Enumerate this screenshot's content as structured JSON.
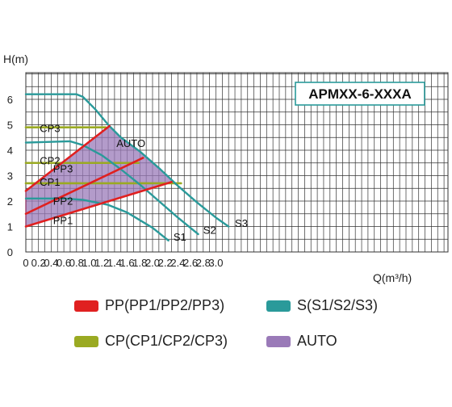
{
  "chart_data": {
    "type": "line",
    "title": "APMXX-6-XXXA",
    "ylabel": "H(m)",
    "xlabel": "Q(m³/h)",
    "xlim": [
      0,
      3.4
    ],
    "ylim": [
      0,
      7
    ],
    "x_ticks": [
      "0",
      "0.2",
      "0.4",
      "0.6",
      "0.8",
      "1.0",
      "1.2",
      "1.4",
      "1.6",
      "1.8",
      "2.0",
      "2.2",
      "2.4",
      "2.6",
      "2.8",
      "3.0"
    ],
    "y_ticks": [
      "0",
      "1",
      "2",
      "3",
      "4",
      "5",
      "6"
    ],
    "colors": {
      "PP": "#e02020",
      "S": "#2a9a9a",
      "CP": "#9aaa22",
      "AUTO": "#9a7ab8",
      "AUTO_edge": "#8b2a5a",
      "grid": "#333333"
    },
    "series": [
      {
        "name": "S1",
        "group": "S",
        "x": [
          0,
          0.6,
          0.9,
          1.3,
          1.6,
          2.0,
          2.25
        ],
        "y": [
          2.1,
          2.1,
          2.05,
          1.85,
          1.55,
          0.95,
          0.45
        ]
      },
      {
        "name": "S2",
        "group": "S",
        "x": [
          0,
          0.7,
          0.9,
          1.2,
          1.5,
          1.8,
          2.1,
          2.4,
          2.72
        ],
        "y": [
          4.3,
          4.35,
          4.2,
          3.8,
          3.25,
          2.65,
          2.0,
          1.35,
          0.7
        ]
      },
      {
        "name": "S3",
        "group": "S",
        "x": [
          0,
          0.8,
          0.9,
          1.1,
          1.3,
          1.5,
          1.8,
          2.1,
          2.4,
          2.7,
          3.0,
          3.2
        ],
        "y": [
          6.2,
          6.2,
          6.1,
          5.6,
          5.0,
          4.5,
          3.95,
          3.3,
          2.6,
          1.95,
          1.35,
          1.0
        ]
      },
      {
        "name": "PP1",
        "group": "PP",
        "x": [
          0,
          2.3
        ],
        "y": [
          1.0,
          2.75
        ]
      },
      {
        "name": "PP2",
        "group": "PP",
        "x": [
          0,
          1.85
        ],
        "y": [
          1.5,
          3.7
        ]
      },
      {
        "name": "PP3",
        "group": "PP",
        "x": [
          0,
          1.32
        ],
        "y": [
          2.4,
          4.95
        ]
      },
      {
        "name": "CP1",
        "group": "CP",
        "x": [
          0,
          2.45
        ],
        "y": [
          2.7,
          2.7
        ]
      },
      {
        "name": "CP2",
        "group": "CP",
        "x": [
          0,
          1.78
        ],
        "y": [
          3.5,
          3.5
        ]
      },
      {
        "name": "CP3",
        "group": "CP",
        "x": [
          0,
          1.26
        ],
        "y": [
          4.9,
          4.9
        ]
      }
    ],
    "auto_region": {
      "x": [
        0,
        1.32,
        1.5,
        1.8,
        2.1,
        2.4,
        2.3,
        0
      ],
      "y": [
        2.4,
        4.95,
        4.5,
        3.95,
        3.3,
        2.6,
        2.75,
        1.0
      ]
    },
    "labels": [
      {
        "text": "CP3",
        "x": 0.22,
        "y": 4.72
      },
      {
        "text": "AUTO",
        "x": 1.43,
        "y": 4.12
      },
      {
        "text": "CP2",
        "x": 0.22,
        "y": 3.45
      },
      {
        "text": "PP3",
        "x": 0.43,
        "y": 3.12
      },
      {
        "text": "CP1",
        "x": 0.22,
        "y": 2.6
      },
      {
        "text": "PP2",
        "x": 0.43,
        "y": 1.85
      },
      {
        "text": "PP1",
        "x": 0.43,
        "y": 1.1
      },
      {
        "text": "S1",
        "x": 2.33,
        "y": 0.45
      },
      {
        "text": "S2",
        "x": 2.8,
        "y": 0.72
      },
      {
        "text": "S3",
        "x": 3.3,
        "y": 0.98
      }
    ],
    "legend": [
      {
        "label": "PP(PP1/PP2/PP3)",
        "color": "#e02020"
      },
      {
        "label": "S(S1/S2/S3)",
        "color": "#2a9a9a"
      },
      {
        "label": "CP(CP1/CP2/CP3)",
        "color": "#9aaa22"
      },
      {
        "label": "AUTO",
        "color": "#9a7ab8"
      }
    ]
  }
}
